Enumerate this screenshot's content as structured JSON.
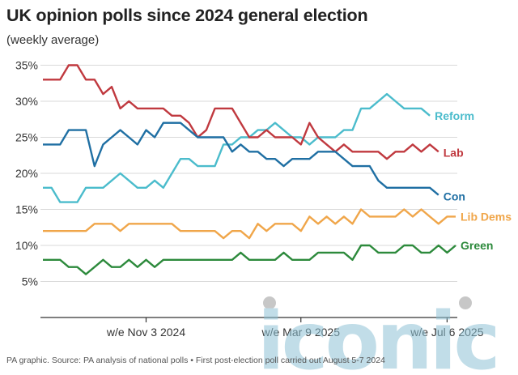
{
  "title": "UK opinion polls since 2024 general election",
  "subtitle": "(weekly average)",
  "source": "PA graphic. Source: PA analysis of national polls • First post-election poll carried out August 5-7 2024",
  "watermark": "iconic",
  "chart_data": {
    "type": "line",
    "title": "UK opinion polls since 2024 general election",
    "subtitle": "(weekly average)",
    "ylim": [
      0,
      37
    ],
    "y_ticks": [
      5,
      10,
      15,
      20,
      25,
      30,
      35
    ],
    "y_tick_labels": [
      "5%",
      "10%",
      "15%",
      "20%",
      "25%",
      "30%",
      "35%"
    ],
    "x_ticks": [
      {
        "week": 12,
        "label": "w/e Nov 3 2024"
      },
      {
        "week": 30,
        "label": "w/e Mar 9 2025"
      },
      {
        "week": 47,
        "label": "w/e Jul 6 2025"
      }
    ],
    "grid": "horizontal",
    "legend": "right-end labels",
    "series": [
      {
        "name": "Reform",
        "color": "#4bbccc",
        "values": [
          18,
          18,
          16,
          16,
          16,
          18,
          18,
          18,
          19,
          20,
          19,
          18,
          18,
          19,
          18,
          20,
          22,
          22,
          21,
          21,
          21,
          24,
          24,
          25,
          25,
          26,
          26,
          27,
          26,
          25,
          25,
          24,
          25,
          25,
          25,
          26,
          26,
          29,
          29,
          30,
          31,
          30,
          29,
          29,
          29,
          28
        ]
      },
      {
        "name": "Lab",
        "color": "#c0393f",
        "values": [
          33,
          33,
          33,
          35,
          35,
          33,
          33,
          31,
          32,
          29,
          30,
          29,
          29,
          29,
          29,
          28,
          28,
          27,
          25,
          26,
          29,
          29,
          29,
          27,
          25,
          25,
          26,
          25,
          25,
          25,
          24,
          27,
          25,
          24,
          23,
          24,
          23,
          23,
          23,
          23,
          22,
          23,
          23,
          24,
          23,
          24,
          23
        ]
      },
      {
        "name": "Con",
        "color": "#1f6fa3",
        "values": [
          24,
          24,
          24,
          26,
          26,
          26,
          21,
          24,
          25,
          26,
          25,
          24,
          26,
          25,
          27,
          27,
          27,
          26,
          25,
          25,
          25,
          25,
          23,
          24,
          23,
          23,
          22,
          22,
          21,
          22,
          22,
          22,
          23,
          23,
          23,
          22,
          21,
          21,
          21,
          19,
          18,
          18,
          18,
          18,
          18,
          18,
          17
        ]
      },
      {
        "name": "Lib Dems",
        "color": "#f0a64a",
        "values": [
          12,
          12,
          12,
          12,
          12,
          12,
          13,
          13,
          13,
          12,
          13,
          13,
          13,
          13,
          13,
          13,
          12,
          12,
          12,
          12,
          12,
          11,
          12,
          12,
          11,
          13,
          12,
          13,
          13,
          13,
          12,
          14,
          13,
          14,
          13,
          14,
          13,
          15,
          14,
          14,
          14,
          14,
          15,
          14,
          15,
          14,
          13,
          14,
          14
        ]
      },
      {
        "name": "Green",
        "color": "#2d8a3c",
        "values": [
          8,
          8,
          8,
          7,
          7,
          6,
          7,
          8,
          7,
          7,
          8,
          7,
          8,
          7,
          8,
          8,
          8,
          8,
          8,
          8,
          8,
          8,
          8,
          9,
          8,
          8,
          8,
          8,
          9,
          8,
          8,
          8,
          9,
          9,
          9,
          9,
          8,
          10,
          10,
          9,
          9,
          9,
          10,
          10,
          9,
          9,
          10,
          9,
          10
        ]
      }
    ]
  },
  "colors": {
    "gridline": "#d9d9d9",
    "axis": "#333333",
    "watermark": "#8fc3d6"
  }
}
